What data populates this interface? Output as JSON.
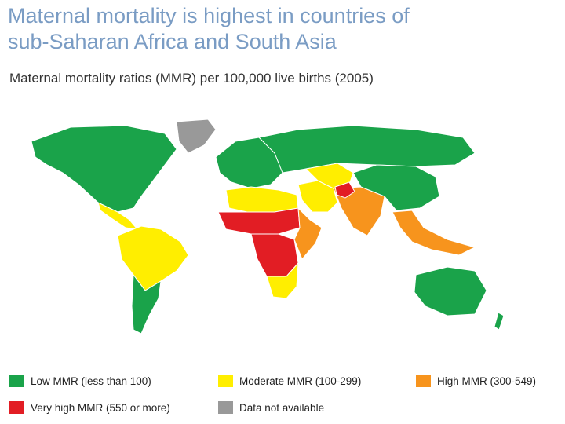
{
  "header": {
    "title_line1": "Maternal mortality is highest in countries of",
    "title_line2": "sub-Saharan Africa and South Asia",
    "subtitle": "Maternal mortality ratios (MMR) per 100,000 live births (2005)"
  },
  "colors": {
    "low": "#1aa34a",
    "moderate": "#ffee00",
    "high": "#f7941d",
    "very_high": "#e21d24",
    "na": "#999999",
    "ocean": "#ffffff"
  },
  "legend": [
    {
      "label": "Low MMR (less than 100)",
      "category": "low"
    },
    {
      "label": "Moderate MMR (100-299)",
      "category": "moderate"
    },
    {
      "label": "High MMR (300-549)",
      "category": "high"
    },
    {
      "label": "Very high MMR (550 or more)",
      "category": "very_high"
    },
    {
      "label": "Data not available",
      "category": "na"
    }
  ],
  "map_regions": [
    {
      "name": "North America",
      "category": "low"
    },
    {
      "name": "Greenland",
      "category": "na"
    },
    {
      "name": "Central America",
      "category": "moderate"
    },
    {
      "name": "South America north",
      "category": "moderate"
    },
    {
      "name": "South America south",
      "category": "low"
    },
    {
      "name": "Europe",
      "category": "low"
    },
    {
      "name": "Russia",
      "category": "low"
    },
    {
      "name": "North Africa",
      "category": "moderate"
    },
    {
      "name": "Sahel",
      "category": "very_high"
    },
    {
      "name": "Central Africa",
      "category": "very_high"
    },
    {
      "name": "East Africa",
      "category": "high"
    },
    {
      "name": "Southern Africa",
      "category": "moderate"
    },
    {
      "name": "Middle East",
      "category": "moderate"
    },
    {
      "name": "Central Asia",
      "category": "moderate"
    },
    {
      "name": "South Asia",
      "category": "high"
    },
    {
      "name": "Afghanistan",
      "category": "very_high"
    },
    {
      "name": "China",
      "category": "low"
    },
    {
      "name": "Southeast Asia",
      "category": "high"
    },
    {
      "name": "Australia",
      "category": "low"
    }
  ]
}
